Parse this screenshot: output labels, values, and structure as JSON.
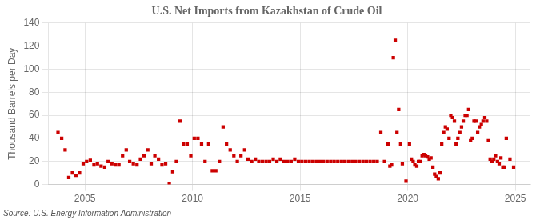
{
  "chart_data": {
    "type": "scatter",
    "title": "U.S. Net Imports from Kazakhstan of Crude Oil",
    "y_label": "Thousand Barrels per Day",
    "annotations": [
      "Source: U.S. Energy Information Administration"
    ],
    "color": "#cc0000",
    "marker": "square",
    "grid": true,
    "xlim": [
      2003.3,
      2025.7
    ],
    "xticks": [
      2005,
      2010,
      2015,
      2020,
      2025
    ],
    "ylim": [
      0,
      140
    ],
    "yticks": [
      0,
      20,
      40,
      60,
      80,
      100,
      120,
      140
    ],
    "x": [
      2003.75,
      2003.92,
      2004.08,
      2004.25,
      2004.42,
      2004.58,
      2004.75,
      2004.92,
      2005.08,
      2005.25,
      2005.42,
      2005.58,
      2005.75,
      2005.92,
      2006.08,
      2006.25,
      2006.42,
      2006.58,
      2006.75,
      2006.92,
      2007.08,
      2007.25,
      2007.42,
      2007.58,
      2007.75,
      2007.92,
      2008.08,
      2008.25,
      2008.42,
      2008.58,
      2008.75,
      2008.92,
      2009.08,
      2009.25,
      2009.42,
      2009.58,
      2009.75,
      2009.92,
      2010.08,
      2010.25,
      2010.42,
      2010.58,
      2010.75,
      2010.92,
      2011.08,
      2011.25,
      2011.42,
      2011.58,
      2011.75,
      2011.92,
      2012.08,
      2012.25,
      2012.42,
      2012.58,
      2012.75,
      2012.92,
      2013.08,
      2013.25,
      2013.42,
      2013.58,
      2013.75,
      2013.92,
      2014.08,
      2014.25,
      2014.42,
      2014.58,
      2014.75,
      2014.92,
      2015.08,
      2015.25,
      2015.42,
      2015.58,
      2015.75,
      2015.92,
      2016.08,
      2016.25,
      2016.42,
      2016.58,
      2016.75,
      2016.92,
      2017.08,
      2017.25,
      2017.42,
      2017.58,
      2017.75,
      2017.92,
      2018.08,
      2018.25,
      2018.42,
      2018.58,
      2018.75,
      2018.92,
      2019.08,
      2019.17,
      2019.25,
      2019.33,
      2019.42,
      2019.5,
      2019.58,
      2019.67,
      2019.75,
      2019.92,
      2020.08,
      2020.17,
      2020.25,
      2020.33,
      2020.42,
      2020.5,
      2020.58,
      2020.67,
      2020.75,
      2020.83,
      2020.92,
      2021.0,
      2021.08,
      2021.17,
      2021.25,
      2021.33,
      2021.42,
      2021.5,
      2021.58,
      2021.67,
      2021.75,
      2021.83,
      2021.92,
      2022.0,
      2022.08,
      2022.17,
      2022.25,
      2022.33,
      2022.42,
      2022.5,
      2022.58,
      2022.67,
      2022.75,
      2022.83,
      2022.92,
      2023.0,
      2023.08,
      2023.17,
      2023.25,
      2023.33,
      2023.42,
      2023.5,
      2023.58,
      2023.67,
      2023.75,
      2023.83,
      2023.92,
      2024.0,
      2024.08,
      2024.17,
      2024.25,
      2024.33,
      2024.42,
      2024.5,
      2024.58,
      2024.75,
      2024.92
    ],
    "values": [
      45,
      40,
      30,
      6,
      10,
      8,
      10,
      18,
      20,
      21,
      17,
      18,
      16,
      15,
      20,
      18,
      17,
      17,
      25,
      30,
      20,
      18,
      17,
      22,
      25,
      30,
      18,
      25,
      22,
      17,
      18,
      1,
      11,
      20,
      55,
      35,
      35,
      25,
      40,
      40,
      35,
      20,
      35,
      12,
      12,
      20,
      50,
      35,
      30,
      25,
      20,
      25,
      30,
      22,
      20,
      22,
      20,
      20,
      20,
      20,
      22,
      20,
      22,
      20,
      20,
      20,
      22,
      20,
      20,
      20,
      20,
      20,
      20,
      20,
      20,
      20,
      20,
      20,
      20,
      20,
      20,
      20,
      20,
      20,
      20,
      20,
      20,
      20,
      20,
      20,
      45,
      20,
      35,
      16,
      17,
      110,
      125,
      45,
      65,
      35,
      18,
      3,
      35,
      22,
      20,
      17,
      16,
      20,
      20,
      25,
      26,
      25,
      24,
      22,
      23,
      15,
      9,
      7,
      5,
      10,
      35,
      45,
      50,
      48,
      40,
      60,
      58,
      55,
      35,
      40,
      45,
      50,
      55,
      60,
      60,
      65,
      38,
      40,
      55,
      55,
      45,
      50,
      52,
      55,
      58,
      55,
      38,
      22,
      20,
      22,
      25,
      20,
      18,
      23,
      15,
      15,
      40,
      22,
      15
    ]
  }
}
